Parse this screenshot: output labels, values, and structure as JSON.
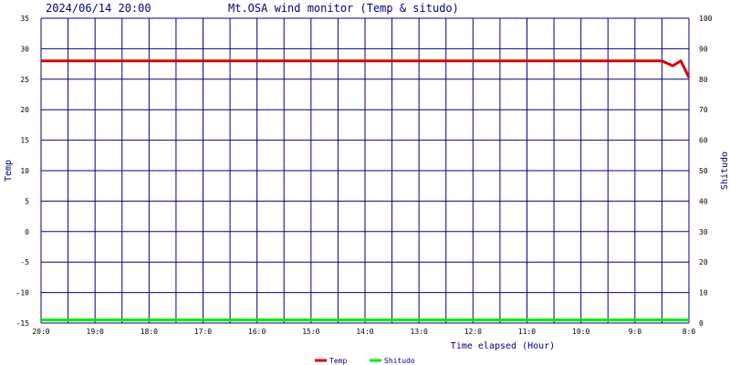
{
  "header": {
    "datetime": "2024/06/14 20:00",
    "title": "Mt.OSA wind monitor (Temp & situdo)"
  },
  "chart_data": {
    "type": "line",
    "title": "Mt.OSA wind monitor (Temp & situdo)",
    "xlabel": "Time elapsed (Hour)",
    "ylabel_left": "Temp",
    "ylabel_right": "Shitudo",
    "x_tick_labels": [
      "20:0",
      "19:0",
      "18:0",
      "17:0",
      "16:0",
      "15:0",
      "14:0",
      "13:0",
      "12:0",
      "11:0",
      "10:0",
      "9:0",
      "8:0"
    ],
    "xlim": [
      0,
      12
    ],
    "x_direction": "hours elapsed increase to the right",
    "y_left_ticks": [
      35,
      30,
      25,
      20,
      15,
      10,
      5,
      0,
      -5,
      -10,
      -15
    ],
    "ylim_left": [
      -15,
      35
    ],
    "y_right_ticks": [
      100,
      90,
      80,
      70,
      60,
      50,
      40,
      30,
      20,
      10,
      0
    ],
    "ylim_right": [
      0,
      100
    ],
    "grid": true,
    "legend_position": "bottom-center",
    "series": [
      {
        "name": "Temp",
        "axis": "left",
        "color": "#dd0000",
        "x": [
          0,
          11.5,
          11.7,
          11.85,
          12
        ],
        "y": [
          28,
          28,
          27.2,
          28,
          25.3
        ]
      },
      {
        "name": "Shitudo",
        "axis": "right",
        "color": "#00ee00",
        "x": [
          0,
          12
        ],
        "y": [
          1,
          1
        ]
      }
    ]
  },
  "colors": {
    "grid": "#00008b",
    "text": "#000080",
    "background": "#ffffff"
  }
}
